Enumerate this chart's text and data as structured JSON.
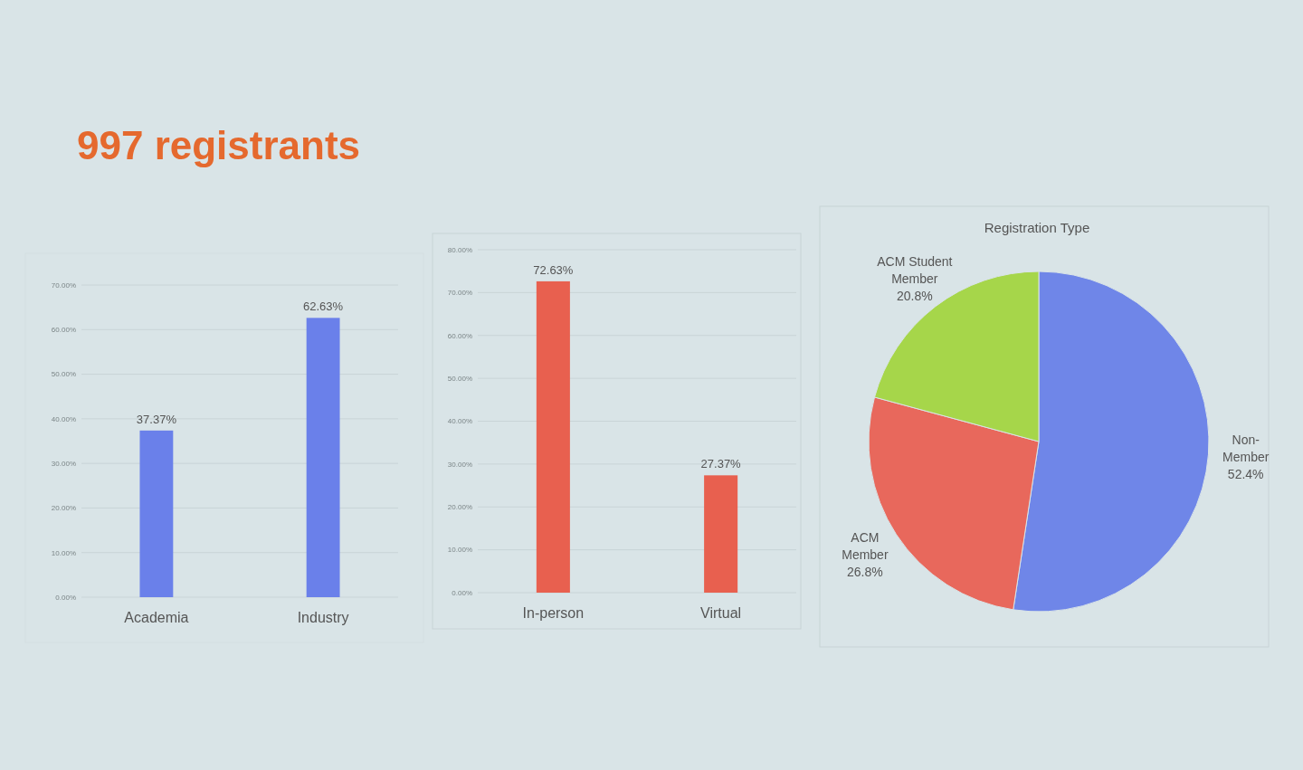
{
  "chart_data": [
    {
      "type": "bar",
      "title": "997 registrants",
      "categories": [
        "Academia",
        "Industry"
      ],
      "values": [
        37.37,
        62.63
      ],
      "value_labels": [
        "37.37%",
        "62.63%"
      ],
      "color": "#6a80ea",
      "ylim": [
        0,
        70
      ],
      "yticks": [
        {
          "value": 0,
          "label": "0.00%"
        },
        {
          "value": 10,
          "label": "10.00%"
        },
        {
          "value": 20,
          "label": "20.00%"
        },
        {
          "value": 30,
          "label": "30.00%"
        },
        {
          "value": 40,
          "label": "40.00%"
        },
        {
          "value": 50,
          "label": "50.00%"
        },
        {
          "value": 60,
          "label": "60.00%"
        },
        {
          "value": 70,
          "label": "70.00%"
        }
      ],
      "grid": "y"
    },
    {
      "type": "bar",
      "categories": [
        "In-person",
        "Virtual"
      ],
      "values": [
        72.63,
        27.37
      ],
      "value_labels": [
        "72.63%",
        "27.37%"
      ],
      "color": "#e8604f",
      "ylim": [
        0,
        80
      ],
      "yticks": [
        {
          "value": 0,
          "label": "0.00%"
        },
        {
          "value": 10,
          "label": "10.00%"
        },
        {
          "value": 20,
          "label": "20.00%"
        },
        {
          "value": 30,
          "label": "30.00%"
        },
        {
          "value": 40,
          "label": "40.00%"
        },
        {
          "value": 50,
          "label": "50.00%"
        },
        {
          "value": 60,
          "label": "60.00%"
        },
        {
          "value": 70,
          "label": "70.00%"
        },
        {
          "value": 80,
          "label": "80.00%"
        }
      ],
      "grid": "y"
    },
    {
      "type": "pie",
      "title": "Registration Type",
      "categories": [
        "Non-Member",
        "ACM Member",
        "ACM Student Member"
      ],
      "values": [
        52.4,
        26.8,
        20.8
      ],
      "value_labels": [
        "52.4%",
        "26.8%",
        "20.8%"
      ],
      "colors": [
        "#6f86e8",
        "#e8685c",
        "#a6d64a"
      ]
    }
  ]
}
